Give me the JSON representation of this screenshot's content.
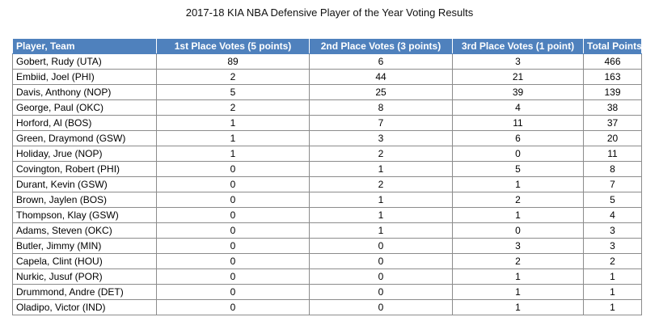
{
  "title": "2017-18 KIA NBA Defensive Player of the Year Voting Results",
  "columns": [
    "Player, Team",
    "1st Place Votes (5 points)",
    "2nd Place Votes (3 points)",
    "3rd Place Votes (1 point)",
    "Total Points"
  ],
  "rows": [
    {
      "player": "Gobert, Rudy (UTA)",
      "first": "89",
      "second": "6",
      "third": "3",
      "total": "466"
    },
    {
      "player": "Embiid, Joel (PHI)",
      "first": "2",
      "second": "44",
      "third": "21",
      "total": "163"
    },
    {
      "player": "Davis, Anthony (NOP)",
      "first": "5",
      "second": "25",
      "third": "39",
      "total": "139"
    },
    {
      "player": "George, Paul (OKC)",
      "first": "2",
      "second": "8",
      "third": "4",
      "total": "38"
    },
    {
      "player": "Horford, Al (BOS)",
      "first": "1",
      "second": "7",
      "third": "11",
      "total": "37"
    },
    {
      "player": "Green, Draymond (GSW)",
      "first": "1",
      "second": "3",
      "third": "6",
      "total": "20"
    },
    {
      "player": "Holiday, Jrue (NOP)",
      "first": "1",
      "second": "2",
      "third": "0",
      "total": "11"
    },
    {
      "player": "Covington, Robert (PHI)",
      "first": "0",
      "second": "1",
      "third": "5",
      "total": "8"
    },
    {
      "player": "Durant, Kevin (GSW)",
      "first": "0",
      "second": "2",
      "third": "1",
      "total": "7"
    },
    {
      "player": "Brown, Jaylen (BOS)",
      "first": "0",
      "second": "1",
      "third": "2",
      "total": "5"
    },
    {
      "player": "Thompson, Klay (GSW)",
      "first": "0",
      "second": "1",
      "third": "1",
      "total": "4"
    },
    {
      "player": "Adams, Steven (OKC)",
      "first": "0",
      "second": "1",
      "third": "0",
      "total": "3"
    },
    {
      "player": "Butler, Jimmy (MIN)",
      "first": "0",
      "second": "0",
      "third": "3",
      "total": "3"
    },
    {
      "player": "Capela, Clint (HOU)",
      "first": "0",
      "second": "0",
      "third": "2",
      "total": "2"
    },
    {
      "player": "Nurkic, Jusuf (POR)",
      "first": "0",
      "second": "0",
      "third": "1",
      "total": "1"
    },
    {
      "player": "Drummond, Andre (DET)",
      "first": "0",
      "second": "0",
      "third": "1",
      "total": "1"
    },
    {
      "player": "Oladipo, Victor (IND)",
      "first": "0",
      "second": "0",
      "third": "1",
      "total": "1"
    }
  ],
  "colors": {
    "header_fill": "#4f81bd",
    "header_text": "#ffffff",
    "grid_line": "#8c8c8c"
  }
}
